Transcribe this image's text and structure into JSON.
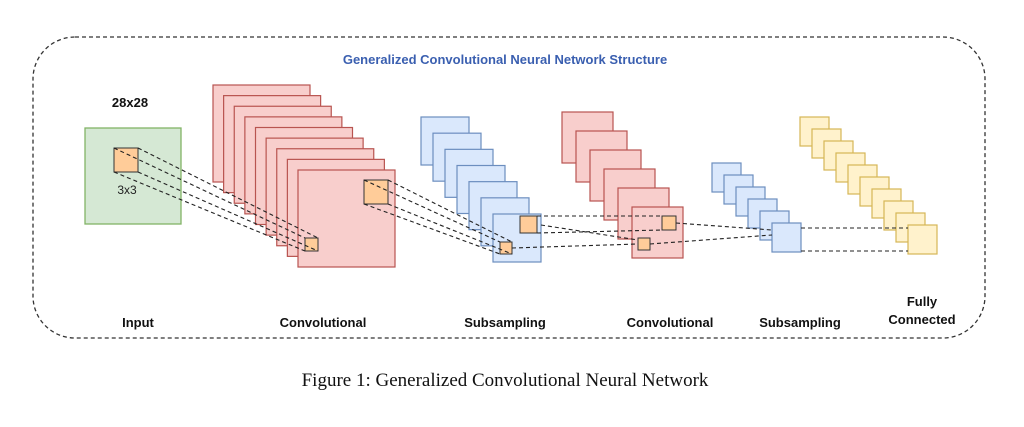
{
  "diagram": {
    "title": "Generalized Convolutional Neural Network Structure",
    "input_size": "28x28",
    "kernel_size": "3x3",
    "stages": [
      "Input",
      "Convolutional",
      "Subsampling",
      "Convolutional",
      "Subsampling",
      "Fully Connected"
    ]
  },
  "caption": "Figure 1: Generalized Convolutional Neural Network"
}
